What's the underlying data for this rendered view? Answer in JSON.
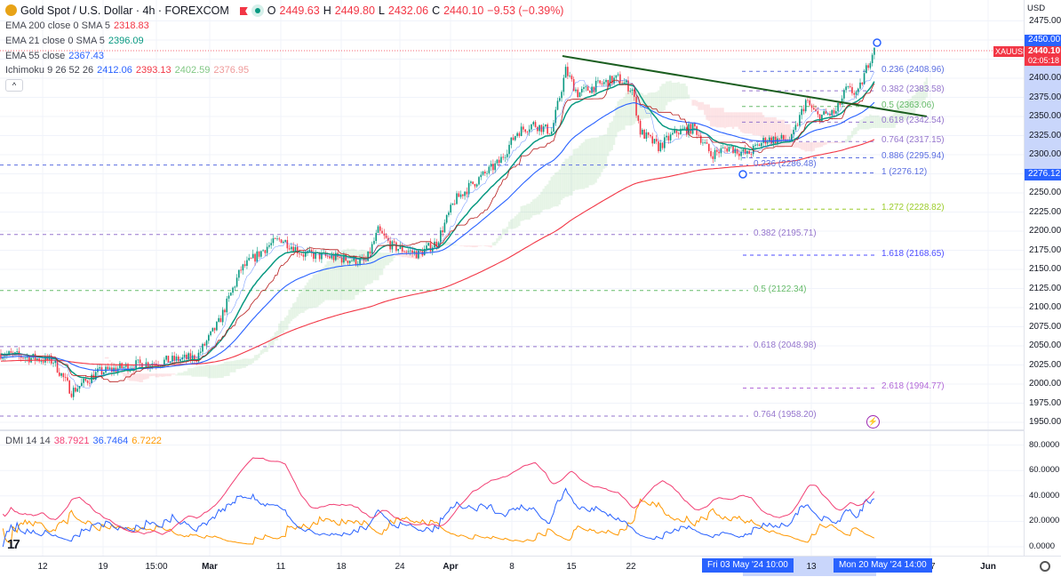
{
  "header": {
    "symbol": "Gold Spot / U.S. Dollar · 4h · FOREXCOM",
    "open_label": "O",
    "open": "2449.63",
    "high_label": "H",
    "high": "2449.80",
    "low_label": "L",
    "low": "2432.06",
    "close_label": "C",
    "close": "2440.10",
    "change": "−9.53 (−0.39%)"
  },
  "indicators": [
    {
      "name": "EMA 200 close 0 SMA 5",
      "values": [
        "2318.83"
      ]
    },
    {
      "name": "EMA 21 close 0 SMA 5",
      "values": [
        "2396.09"
      ]
    },
    {
      "name": "EMA 55 close",
      "values": [
        "2367.43"
      ]
    },
    {
      "name": "Ichimoku 9 26 52 26",
      "values": [
        "2412.06",
        "2393.13",
        "2402.59",
        "2376.95"
      ]
    },
    {
      "name": "DMI 14 14",
      "values": [
        "38.7921",
        "36.7464",
        "6.7222"
      ]
    }
  ],
  "collapse_icon": "^",
  "price_axis": {
    "currency": "USD",
    "labels": [
      "2475.00",
      "2400.00",
      "2375.00",
      "2350.00",
      "2325.00",
      "2300.00",
      "2250.00",
      "2225.00",
      "2200.00",
      "2175.00",
      "2150.00",
      "2125.00",
      "2100.00",
      "2075.00",
      "2050.00",
      "2025.00",
      "2000.00",
      "1975.00",
      "1950.00"
    ],
    "badge_high": "2450.00",
    "badge_price": "2440.10",
    "badge_timer": "02:05:18",
    "badge_low": "2276.12",
    "symbol_badge": "XAUUSD"
  },
  "dmi_axis": {
    "labels": [
      "80.0000",
      "60.0000",
      "40.0000",
      "20.0000",
      "0.0000"
    ]
  },
  "time_axis": {
    "labels": [
      "12",
      "19",
      "15:00",
      "Mar",
      "11",
      "18",
      "24",
      "Apr",
      "8",
      "15",
      "22",
      "13",
      "27",
      "Jun"
    ],
    "range_start": "Fri 03 May '24   10:00",
    "range_end": "Mon 20 May '24   14:00"
  },
  "fib_right": [
    "0.236 (2408.96)",
    "0.382 (2383.58)",
    "0.5 (2363.06)",
    "0.618 (2342.54)",
    "0.764 (2317.15)",
    "0.886 (2295.94)",
    "1 (2276.12)",
    "1.272 (2228.82)",
    "1.618 (2168.65)",
    "2.618 (1994.77)"
  ],
  "fib_left": [
    "0.236 (2286.48)",
    "0.382 (2195.71)",
    "0.5 (2122.34)",
    "0.618 (2048.98)",
    "0.764 (1958.20)"
  ],
  "colors": {
    "up": "#089981",
    "down": "#f23645",
    "ema21": "#089981",
    "ema55": "#2962ff",
    "ema200": "#f23645",
    "dmi_adx": "#f23f74",
    "dmi_plus": "#2962ff",
    "dmi_minus": "#ff9800",
    "trendline": "#1b5e20"
  },
  "chart_data": {
    "type": "candlestick",
    "title": "Gold Spot / U.S. Dollar · 4h · FOREXCOM",
    "ylim": [
      1945,
      2480
    ],
    "price_path_bar_close": [
      [
        0,
        2040
      ],
      [
        26,
        2030
      ],
      [
        35,
        1990
      ],
      [
        48,
        2015
      ],
      [
        66,
        2025
      ],
      [
        97,
        2035
      ],
      [
        108,
        2080
      ],
      [
        119,
        2150
      ],
      [
        132,
        2180
      ],
      [
        139,
        2190
      ],
      [
        150,
        2170
      ],
      [
        167,
        2165
      ],
      [
        181,
        2160
      ],
      [
        187,
        2200
      ],
      [
        194,
        2180
      ],
      [
        207,
        2170
      ],
      [
        216,
        2185
      ],
      [
        225,
        2240
      ],
      [
        233,
        2260
      ],
      [
        247,
        2290
      ],
      [
        256,
        2330
      ],
      [
        264,
        2340
      ],
      [
        273,
        2330
      ],
      [
        280,
        2410
      ],
      [
        286,
        2380
      ],
      [
        295,
        2390
      ],
      [
        306,
        2400
      ],
      [
        313,
        2385
      ],
      [
        317,
        2330
      ],
      [
        326,
        2310
      ],
      [
        335,
        2330
      ],
      [
        344,
        2335
      ],
      [
        352,
        2300
      ],
      [
        361,
        2310
      ],
      [
        370,
        2300
      ],
      [
        379,
        2320
      ],
      [
        392,
        2320
      ],
      [
        399,
        2370
      ],
      [
        405,
        2350
      ],
      [
        414,
        2355
      ],
      [
        419,
        2385
      ],
      [
        425,
        2380
      ],
      [
        430,
        2420
      ],
      [
        433,
        2440.1
      ]
    ],
    "trendline": [
      [
        2412,
        2352
      ]
    ],
    "fib_levels_right": [
      2408.96,
      2383.58,
      2363.06,
      2342.54,
      2317.15,
      2295.94,
      2276.12,
      2228.82,
      2168.65,
      1994.77
    ],
    "fib_levels_left": [
      2286.48,
      2195.71,
      2122.34,
      2048.98,
      1958.2
    ],
    "dmi_ylim": [
      0,
      90
    ]
  }
}
